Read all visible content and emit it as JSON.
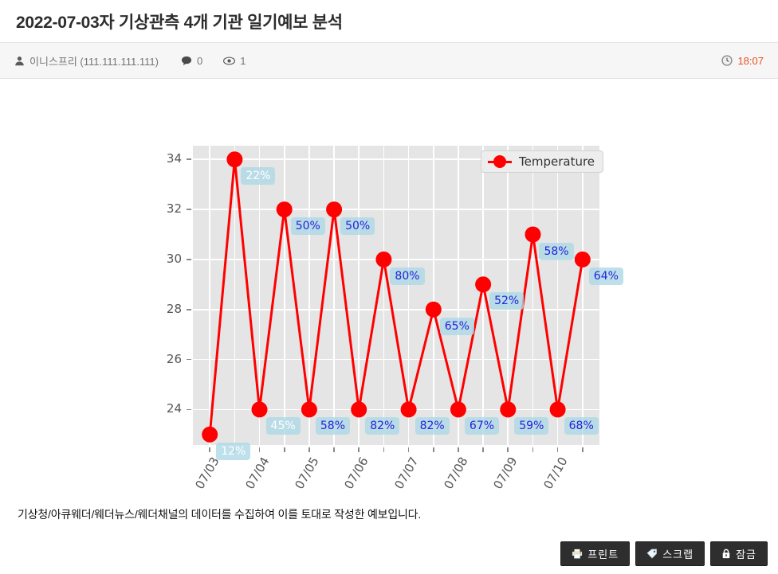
{
  "header": {
    "title": "2022-07-03자 기상관측 4개 기관 일기예보 분석"
  },
  "meta": {
    "author": "이니스프리 (111.111.111.111)",
    "comment_count": "0",
    "view_count": "1",
    "time": "18:07",
    "time_color": "#e8511f"
  },
  "chart_data": {
    "type": "line",
    "title": "",
    "xlabel": "",
    "ylabel": "",
    "grid": true,
    "legend_label": "Temperature",
    "legend_position": "upper right",
    "plot_background": "#e5e5e5",
    "grid_color": "#ffffff",
    "annotation_background": "#add8e6",
    "annotation_text_blue": "#2222dd",
    "annotation_text_white": "#ffffff",
    "xlim": [
      -0.34,
      7.84
    ],
    "ylim": [
      22.58,
      34.55
    ],
    "yticks": [
      24,
      26,
      28,
      30,
      32,
      34
    ],
    "xticks": [
      {
        "x": 0,
        "label": "07/03"
      },
      {
        "x": 1,
        "label": "07/04"
      },
      {
        "x": 2,
        "label": "07/05"
      },
      {
        "x": 3,
        "label": "07/06"
      },
      {
        "x": 4,
        "label": "07/07"
      },
      {
        "x": 5,
        "label": "07/08"
      },
      {
        "x": 6,
        "label": "07/09"
      },
      {
        "x": 7,
        "label": "07/10"
      }
    ],
    "series": [
      {
        "name": "Temperature",
        "color": "#ff0000",
        "points": [
          {
            "x": 0.0,
            "y": 23,
            "label": "12%",
            "label_color": "#ffffff"
          },
          {
            "x": 0.5,
            "y": 34,
            "label": "22%",
            "label_color": "#ffffff"
          },
          {
            "x": 1.0,
            "y": 24,
            "label": "45%",
            "label_color": "#ffffff"
          },
          {
            "x": 1.5,
            "y": 32,
            "label": "50%",
            "label_color": "#2222dd"
          },
          {
            "x": 2.0,
            "y": 24,
            "label": "58%",
            "label_color": "#2222dd"
          },
          {
            "x": 2.5,
            "y": 32,
            "label": "50%",
            "label_color": "#2222dd"
          },
          {
            "x": 3.0,
            "y": 24,
            "label": "82%",
            "label_color": "#2222dd"
          },
          {
            "x": 3.5,
            "y": 30,
            "label": "80%",
            "label_color": "#2222dd"
          },
          {
            "x": 4.0,
            "y": 24,
            "label": "82%",
            "label_color": "#2222dd"
          },
          {
            "x": 4.5,
            "y": 28,
            "label": "65%",
            "label_color": "#2222dd"
          },
          {
            "x": 5.0,
            "y": 24,
            "label": "67%",
            "label_color": "#2222dd"
          },
          {
            "x": 5.5,
            "y": 29,
            "label": "52%",
            "label_color": "#2222dd"
          },
          {
            "x": 6.0,
            "y": 24,
            "label": "59%",
            "label_color": "#2222dd"
          },
          {
            "x": 6.5,
            "y": 31,
            "label": "58%",
            "label_color": "#2222dd"
          },
          {
            "x": 7.0,
            "y": 24,
            "label": "68%",
            "label_color": "#2222dd"
          },
          {
            "x": 7.5,
            "y": 30,
            "label": "64%",
            "label_color": "#2222dd"
          }
        ]
      }
    ]
  },
  "body": {
    "description": "기상청/아큐웨더/웨더뉴스/웨더채널의 데이터를 수집하여 이를 토대로 작성한 예보입니다."
  },
  "actions": {
    "print": {
      "label": "프린트"
    },
    "scrap": {
      "label": "스크랩"
    },
    "lock": {
      "label": "잠금"
    }
  }
}
